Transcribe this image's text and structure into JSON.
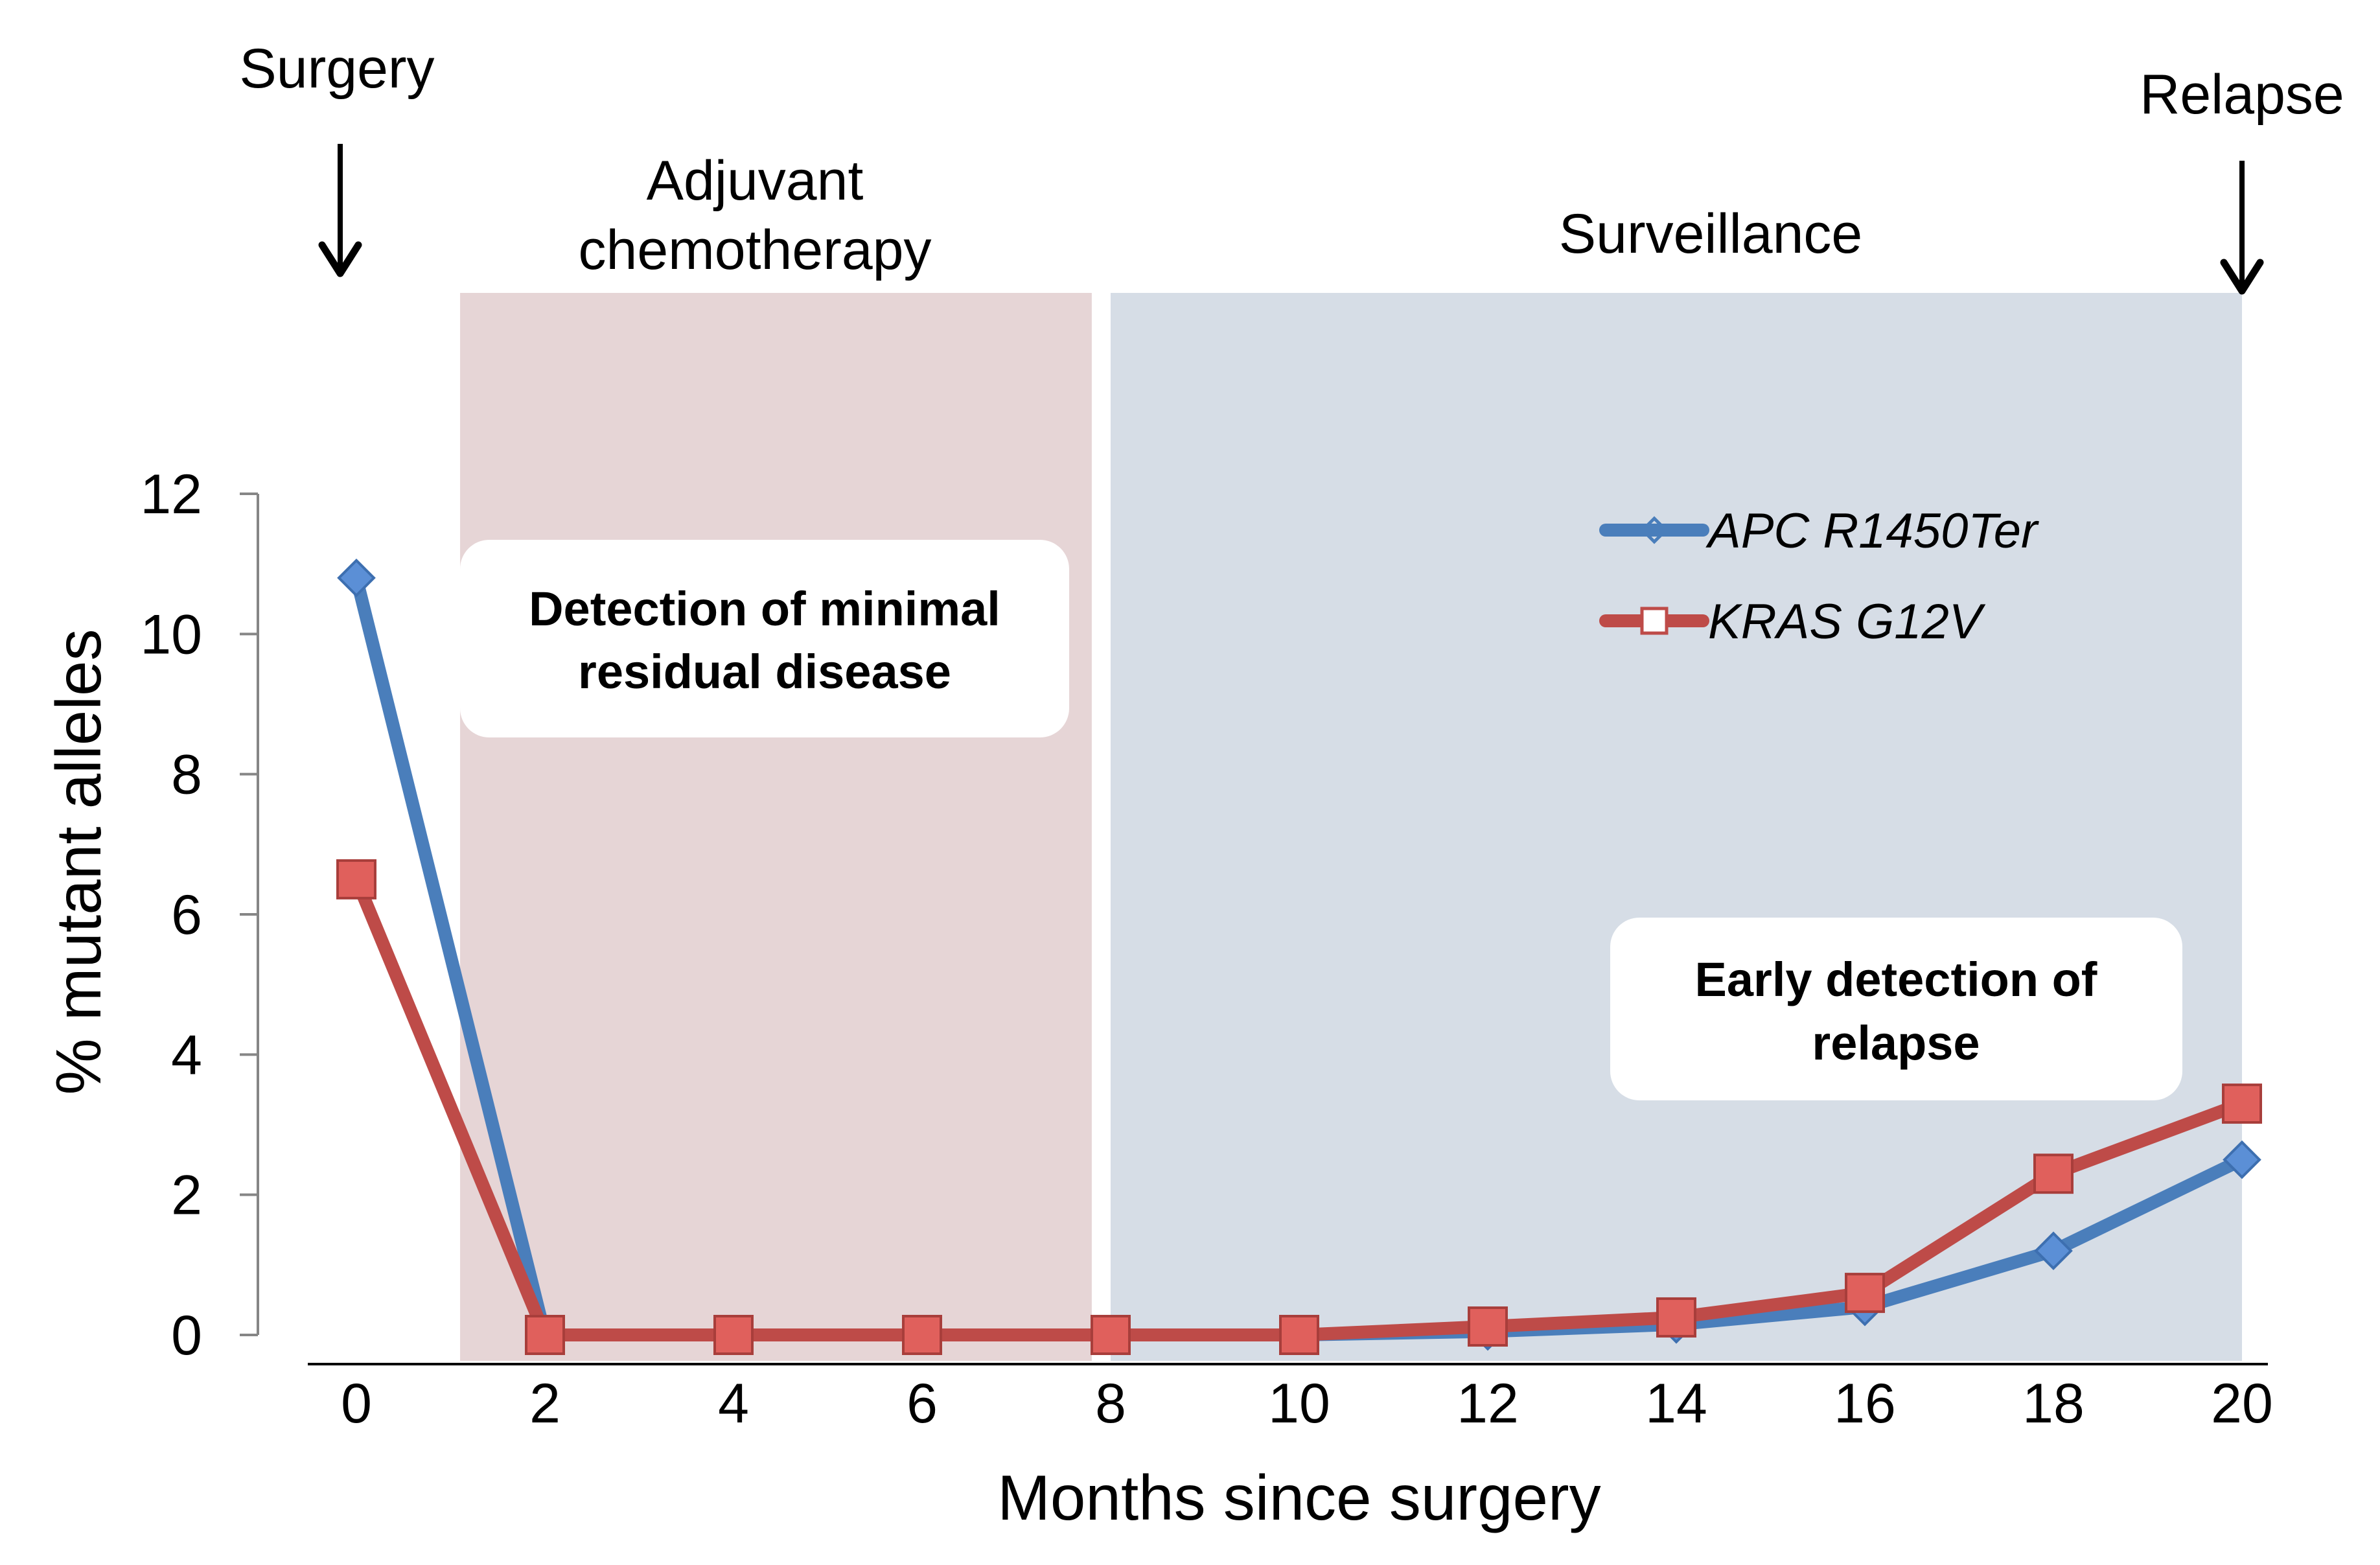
{
  "chart_data": {
    "type": "line",
    "title": "",
    "xlabel": "Months since surgery",
    "ylabel": "% mutant alleles",
    "xlim": [
      0,
      20
    ],
    "ylim": [
      0,
      12
    ],
    "x_ticks": [
      "0",
      "2",
      "4",
      "6",
      "8",
      "10",
      "12",
      "14",
      "16",
      "18",
      "20"
    ],
    "y_ticks": [
      "0",
      "2",
      "4",
      "6",
      "8",
      "10",
      "12"
    ],
    "series": [
      {
        "name": "APC R1450Ter",
        "color": "#4a7ebb",
        "marker": "diamond",
        "x": [
          0,
          2,
          4,
          6,
          8,
          10,
          12,
          14,
          16,
          18,
          20
        ],
        "values": [
          10.8,
          0,
          0,
          0,
          0,
          0,
          0.05,
          0.15,
          0.4,
          1.2,
          2.5
        ]
      },
      {
        "name": "KRAS G12V",
        "color": "#be4b48",
        "marker": "square",
        "x": [
          0,
          2,
          4,
          6,
          8,
          10,
          12,
          14,
          16,
          18,
          20
        ],
        "values": [
          6.5,
          0,
          0,
          0,
          0,
          0,
          0.12,
          0.25,
          0.6,
          2.3,
          3.3
        ]
      }
    ],
    "legend_position": "top-right",
    "shaded_regions": [
      {
        "name": "Adjuvant chemotherapy",
        "x_from": 1.1,
        "x_to": 7.8,
        "color": "#e6d5d6"
      },
      {
        "name": "Surveillance",
        "x_from": 8.0,
        "x_to": 20.0,
        "color": "#d6dde6"
      }
    ],
    "annotations": {
      "surgery": "Surgery",
      "relapse": "Relapse",
      "adjuvant_line1": "Adjuvant",
      "adjuvant_line2": "chemotherapy",
      "surveillance": "Surveillance",
      "mrd_line1": "Detection of minimal",
      "mrd_line2": "residual disease",
      "early_line1": "Early detection of",
      "early_line2": "relapse"
    }
  }
}
